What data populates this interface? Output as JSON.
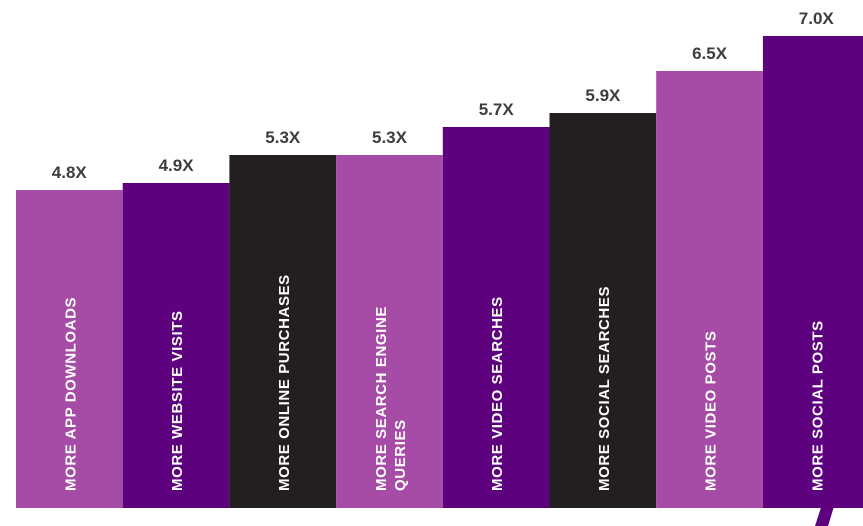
{
  "chart_data": {
    "type": "bar",
    "title": "",
    "xlabel": "",
    "ylabel": "",
    "ylim": [
      0,
      7.0
    ],
    "grid": false,
    "legend": "none",
    "bars": [
      {
        "category_lines": [
          "MORE APP DOWNLOADS"
        ],
        "value": 4.8,
        "value_label": "4.8X",
        "color": "#a64ca6"
      },
      {
        "category_lines": [
          "MORE WEBSITE  VISITS"
        ],
        "value": 4.9,
        "value_label": "4.9X",
        "color": "#5e017f"
      },
      {
        "category_lines": [
          "MORE ONLINE PURCHASES"
        ],
        "value": 5.3,
        "value_label": "5.3X",
        "color": "#231f20"
      },
      {
        "category_lines": [
          "MORE SEARCH ENGINE",
          "QUERIES"
        ],
        "value": 5.3,
        "value_label": "5.3X",
        "color": "#a64ca6"
      },
      {
        "category_lines": [
          "MORE VIDEO SEARCHES"
        ],
        "value": 5.7,
        "value_label": "5.7X",
        "color": "#5e017f"
      },
      {
        "category_lines": [
          "MORE SOCIAL  SEARCHES"
        ],
        "value": 5.9,
        "value_label": "5.9X",
        "color": "#231f20"
      },
      {
        "category_lines": [
          "MORE VIDEO POSTS"
        ],
        "value": 6.5,
        "value_label": "6.5X",
        "color": "#a64ca6"
      },
      {
        "category_lines": [
          "MORE SOCIAL POSTS"
        ],
        "value": 7.0,
        "value_label": "7.0X",
        "color": "#5e017f"
      }
    ]
  }
}
